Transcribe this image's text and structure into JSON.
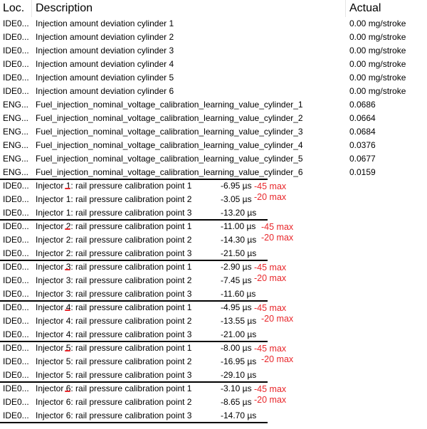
{
  "header": {
    "loc": "Loc.",
    "description": "Description",
    "actual": "Actual"
  },
  "rows": [
    {
      "loc": "IDE0...",
      "desc": "Injection amount deviation cylinder 1",
      "val": "0.00 mg/stroke"
    },
    {
      "loc": "IDE0...",
      "desc": "Injection amount deviation cylinder 2",
      "val": "0.00 mg/stroke"
    },
    {
      "loc": "IDE0...",
      "desc": "Injection amount deviation cylinder 3",
      "val": "0.00 mg/stroke"
    },
    {
      "loc": "IDE0...",
      "desc": "Injection amount deviation cylinder 4",
      "val": "0.00 mg/stroke"
    },
    {
      "loc": "IDE0...",
      "desc": "Injection amount deviation cylinder 5",
      "val": "0.00 mg/stroke"
    },
    {
      "loc": "IDE0...",
      "desc": "Injection amount deviation cylinder 6",
      "val": "0.00 mg/stroke"
    },
    {
      "loc": "ENG...",
      "desc": "Fuel_injection_nominal_voltage_calibration_learning_value_cylinder_1",
      "val": "0.0686"
    },
    {
      "loc": "ENG...",
      "desc": "Fuel_injection_nominal_voltage_calibration_learning_value_cylinder_2",
      "val": "0.0664"
    },
    {
      "loc": "ENG...",
      "desc": "Fuel_injection_nominal_voltage_calibration_learning_value_cylinder_3",
      "val": "0.0684"
    },
    {
      "loc": "ENG...",
      "desc": "Fuel_injection_nominal_voltage_calibration_learning_value_cylinder_4",
      "val": "0.0376"
    },
    {
      "loc": "ENG...",
      "desc": "Fuel_injection_nominal_voltage_calibration_learning_value_cylinder_5",
      "val": "0.0677"
    },
    {
      "loc": "ENG...",
      "desc": "Fuel_injection_nominal_voltage_calibration_learning_value_cylinder_6",
      "val": "0.0159"
    }
  ],
  "injectors": [
    {
      "num": "1",
      "points": [
        {
          "loc": "IDE0...",
          "val": "-6.95 µs",
          "note": "-45 max"
        },
        {
          "loc": "IDE0...",
          "val": "-3.05 µs",
          "note": "-20 max"
        },
        {
          "loc": "IDE0...",
          "val": "-13.20 µs",
          "note": ""
        }
      ]
    },
    {
      "num": "2",
      "points": [
        {
          "loc": "IDE0...",
          "val": "-11.00 µs",
          "note": "-45 max"
        },
        {
          "loc": "IDE0...",
          "val": "-14.30 µs",
          "note": "-20 max"
        },
        {
          "loc": "IDE0...",
          "val": "-21.50 µs",
          "note": ""
        }
      ]
    },
    {
      "num": "3",
      "points": [
        {
          "loc": "IDE0...",
          "val": "-2.90 µs",
          "note": "-45 max"
        },
        {
          "loc": "IDE0...",
          "val": "-7.45 µs",
          "note": "-20 max"
        },
        {
          "loc": "IDE0...",
          "val": "-11.60 µs",
          "note": ""
        }
      ]
    },
    {
      "num": "4",
      "points": [
        {
          "loc": "IDE0...",
          "val": "-4.95 µs",
          "note": "-45 max"
        },
        {
          "loc": "IDE0...",
          "val": "-13.55 µs",
          "note": "-20 max"
        },
        {
          "loc": "IDE0...",
          "val": "-21.00 µs",
          "note": ""
        }
      ]
    },
    {
      "num": "5",
      "points": [
        {
          "loc": "IDE0...",
          "val": "-8.00 µs",
          "note": "-45 max"
        },
        {
          "loc": "IDE0...",
          "val": "-16.95 µs",
          "note": "-20 max"
        },
        {
          "loc": "IDE0...",
          "val": "-29.10 µs",
          "note": ""
        }
      ]
    },
    {
      "num": "6",
      "points": [
        {
          "loc": "IDE0...",
          "val": "-3.10 µs",
          "note": "-45 max"
        },
        {
          "loc": "IDE0...",
          "val": "-8.65 µs",
          "note": "-20 max"
        },
        {
          "loc": "IDE0...",
          "val": "-14.70 µs",
          "note": ""
        }
      ]
    }
  ],
  "injector_text": {
    "prefix": "Injector ",
    "mid": ": rail pressure calibration point ",
    "point_numbers": [
      "1",
      "2",
      "3"
    ]
  },
  "colors": {
    "annotation": "#e8262a"
  }
}
